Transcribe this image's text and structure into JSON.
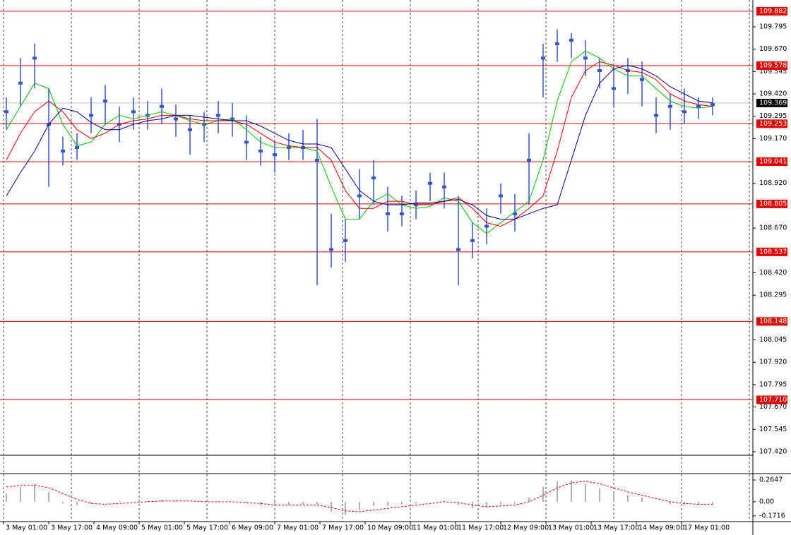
{
  "chart_data": [
    {
      "type": "candlestick",
      "x": [
        1,
        6,
        11,
        16,
        21,
        26,
        31,
        36,
        41,
        46,
        51,
        56,
        61,
        66,
        71,
        76,
        81,
        86,
        91,
        96,
        101,
        106,
        111,
        116,
        121,
        126,
        131,
        136,
        141,
        146,
        151,
        156,
        161,
        166,
        171,
        176,
        181,
        186,
        191,
        196,
        201,
        206,
        211,
        216,
        221,
        226,
        231,
        236,
        241,
        246,
        251
      ],
      "xlim": [
        0,
        266
      ],
      "ylim": [
        107.408,
        109.925
      ],
      "yticks": [
        {
          "value": 109.795,
          "label": "109.795"
        },
        {
          "value": 109.67,
          "label": "109.670"
        },
        {
          "value": 109.545,
          "label": "109.545"
        },
        {
          "value": 109.42,
          "label": "109.420"
        },
        {
          "value": 109.295,
          "label": "109.295"
        },
        {
          "value": 109.17,
          "label": "109.170"
        },
        {
          "value": 108.92,
          "label": "108.920"
        },
        {
          "value": 108.67,
          "label": "108.670"
        },
        {
          "value": 108.42,
          "label": "108.420"
        },
        {
          "value": 108.295,
          "label": "108.295"
        },
        {
          "value": 108.045,
          "label": "108.045"
        },
        {
          "value": 107.92,
          "label": "107.920"
        },
        {
          "value": 107.795,
          "label": "107.795"
        },
        {
          "value": 107.67,
          "label": "107.670"
        },
        {
          "value": 107.545,
          "label": "107.545"
        },
        {
          "value": 107.42,
          "label": "107.420"
        }
      ],
      "candles": {
        "color": "#3556c8",
        "high": [
          109.4,
          109.62,
          109.7,
          109.45,
          109.18,
          109.2,
          109.4,
          109.47,
          109.35,
          109.4,
          109.38,
          109.45,
          109.36,
          109.3,
          109.32,
          109.38,
          109.37,
          109.3,
          109.18,
          109.16,
          109.2,
          109.22,
          109.28,
          108.75,
          108.72,
          109.0,
          109.05,
          108.9,
          108.85,
          108.88,
          108.98,
          108.98,
          108.85,
          108.7,
          108.78,
          108.92,
          108.86,
          109.2,
          109.7,
          109.78,
          109.76,
          109.72,
          109.62,
          109.58,
          109.62,
          109.6,
          109.4,
          109.42,
          109.45,
          109.4,
          109.4
        ],
        "low": [
          109.22,
          109.35,
          109.45,
          108.9,
          109.02,
          109.05,
          109.2,
          109.25,
          109.15,
          109.22,
          109.22,
          109.25,
          109.18,
          109.08,
          109.15,
          109.2,
          109.18,
          109.05,
          109.02,
          108.98,
          109.05,
          109.05,
          108.35,
          108.45,
          108.48,
          108.72,
          108.8,
          108.65,
          108.68,
          108.72,
          108.82,
          108.78,
          108.35,
          108.5,
          108.58,
          108.75,
          108.65,
          108.8,
          109.4,
          109.6,
          109.62,
          109.52,
          109.45,
          109.35,
          109.42,
          109.35,
          109.2,
          109.22,
          109.25,
          109.28,
          109.3
        ],
        "close": [
          109.32,
          109.48,
          109.62,
          109.25,
          109.1,
          109.12,
          109.3,
          109.38,
          109.25,
          109.32,
          109.3,
          109.35,
          109.28,
          109.22,
          109.25,
          109.3,
          109.28,
          109.15,
          109.1,
          109.08,
          109.12,
          109.12,
          109.05,
          108.55,
          108.6,
          108.85,
          108.95,
          108.75,
          108.75,
          108.8,
          108.92,
          108.9,
          108.55,
          108.6,
          108.68,
          108.85,
          108.75,
          109.05,
          109.62,
          109.7,
          109.72,
          109.62,
          109.55,
          109.45,
          109.55,
          109.5,
          109.3,
          109.35,
          109.32,
          109.35,
          109.36
        ]
      },
      "series": [
        {
          "color": "#00c000",
          "values": [
            109.22,
            109.35,
            109.48,
            109.45,
            109.25,
            109.13,
            109.15,
            109.25,
            109.3,
            109.28,
            109.3,
            109.32,
            109.3,
            109.27,
            109.25,
            109.27,
            109.28,
            109.22,
            109.15,
            109.12,
            109.12,
            109.12,
            109.1,
            108.9,
            108.72,
            108.72,
            108.82,
            108.86,
            108.8,
            108.78,
            108.79,
            108.84,
            108.82,
            108.7,
            108.64,
            108.7,
            108.76,
            108.82,
            109.05,
            109.38,
            109.6,
            109.66,
            109.62,
            109.56,
            109.52,
            109.52,
            109.45,
            109.38,
            109.35,
            109.34,
            109.35
          ]
        },
        {
          "color": "#e00000",
          "values": [
            109.05,
            109.2,
            109.32,
            109.38,
            109.32,
            109.22,
            109.17,
            109.2,
            109.25,
            109.27,
            109.28,
            109.3,
            109.3,
            109.28,
            109.27,
            109.27,
            109.27,
            109.25,
            109.2,
            109.15,
            109.13,
            109.12,
            109.12,
            109.05,
            108.88,
            108.78,
            108.78,
            108.82,
            108.82,
            108.8,
            108.8,
            108.82,
            108.84,
            108.78,
            108.7,
            108.68,
            108.72,
            108.78,
            108.85,
            109.1,
            109.4,
            109.55,
            109.6,
            109.58,
            109.55,
            109.54,
            109.5,
            109.42,
            109.38,
            109.36,
            109.35
          ]
        },
        {
          "color": "#000090",
          "values": [
            108.85,
            108.98,
            109.1,
            109.25,
            109.34,
            109.32,
            109.26,
            109.22,
            109.22,
            109.25,
            109.27,
            109.28,
            109.3,
            109.3,
            109.29,
            109.28,
            109.27,
            109.27,
            109.24,
            109.2,
            109.16,
            109.14,
            109.14,
            109.12,
            109.0,
            108.88,
            108.82,
            108.8,
            108.8,
            108.81,
            108.81,
            108.82,
            108.83,
            108.8,
            108.74,
            108.72,
            108.72,
            108.75,
            108.78,
            108.8,
            109.05,
            109.3,
            109.48,
            109.56,
            109.58,
            109.56,
            109.52,
            109.46,
            109.42,
            109.38,
            109.37
          ]
        }
      ],
      "levels": [
        {
          "value": 109.882,
          "label": "109.882"
        },
        {
          "value": 109.578,
          "label": "109.578"
        },
        {
          "value": 109.253,
          "label": "109.253"
        },
        {
          "value": 109.041,
          "label": "109.041"
        },
        {
          "value": 108.805,
          "label": "108.805"
        },
        {
          "value": 108.537,
          "label": "108.537"
        },
        {
          "value": 108.148,
          "label": "108.148"
        },
        {
          "value": 107.71,
          "label": "107.710"
        }
      ],
      "level_color": "#e00000",
      "current_price": 109.369
    },
    {
      "type": "macd",
      "x": [
        1,
        6,
        11,
        16,
        21,
        26,
        31,
        36,
        41,
        46,
        51,
        56,
        61,
        66,
        71,
        76,
        81,
        86,
        91,
        96,
        101,
        106,
        111,
        116,
        121,
        126,
        131,
        136,
        141,
        146,
        151,
        156,
        161,
        166,
        171,
        176,
        181,
        186,
        191,
        196,
        201,
        206,
        211,
        216,
        221,
        226,
        231,
        236,
        241,
        246,
        251
      ],
      "xlim": [
        0,
        266
      ],
      "ylim": [
        -0.223,
        0.325
      ],
      "yticks": [
        0.2647,
        {
          "value": 0,
          "label": "0.00"
        },
        -0.1716
      ],
      "xticks": [
        {
          "value": 0,
          "label": "3 May 01:00"
        },
        {
          "value": 16,
          "label": "3 May 17:00"
        },
        {
          "value": 32,
          "label": "4 May 09:00"
        },
        {
          "value": 48,
          "label": "5 May 01:00"
        },
        {
          "value": 64,
          "label": "5 May 17:00"
        },
        {
          "value": 80,
          "label": "6 May 09:00"
        },
        {
          "value": 96,
          "label": "7 May 01:00"
        },
        {
          "value": 112,
          "label": "7 May 17:00"
        },
        {
          "value": 128,
          "label": "10 May 09:00"
        },
        {
          "value": 144,
          "label": "11 May 01:00"
        },
        {
          "value": 160,
          "label": "11 May 17:00"
        },
        {
          "value": 176,
          "label": "12 May 09:00"
        },
        {
          "value": 192,
          "label": "13 May 01:00"
        },
        {
          "value": 208,
          "label": "13 May 17:00"
        },
        {
          "value": 224,
          "label": "14 May 09:00"
        },
        {
          "value": 240,
          "label": "17 May 01:00"
        }
      ],
      "histogram": {
        "color": "#b0b0b0",
        "values": [
          0.1,
          0.18,
          0.22,
          0.12,
          -0.02,
          -0.04,
          -0.02,
          0.0,
          0.01,
          0.0,
          0.01,
          0.02,
          0.01,
          0.0,
          0.0,
          0.01,
          0.0,
          -0.02,
          -0.04,
          -0.05,
          -0.04,
          -0.03,
          -0.03,
          -0.12,
          -0.16,
          -0.1,
          -0.05,
          -0.05,
          -0.03,
          -0.02,
          0.0,
          0.01,
          -0.04,
          -0.08,
          -0.07,
          -0.03,
          -0.02,
          0.05,
          0.18,
          0.25,
          0.26,
          0.22,
          0.16,
          0.1,
          0.08,
          0.05,
          0.0,
          -0.03,
          -0.04,
          -0.04,
          -0.03
        ]
      },
      "signal": {
        "color": "#e00000",
        "values": [
          0.18,
          0.2,
          0.2,
          0.17,
          0.1,
          0.03,
          -0.02,
          -0.03,
          -0.02,
          -0.01,
          0.0,
          0.01,
          0.01,
          0.01,
          0.0,
          0.0,
          0.0,
          -0.01,
          -0.02,
          -0.04,
          -0.04,
          -0.04,
          -0.04,
          -0.07,
          -0.11,
          -0.12,
          -0.1,
          -0.08,
          -0.06,
          -0.04,
          -0.02,
          0.0,
          -0.01,
          -0.04,
          -0.06,
          -0.05,
          -0.04,
          0.0,
          0.08,
          0.17,
          0.23,
          0.25,
          0.22,
          0.17,
          0.12,
          0.08,
          0.04,
          0.0,
          -0.02,
          -0.03,
          -0.03
        ]
      }
    }
  ]
}
